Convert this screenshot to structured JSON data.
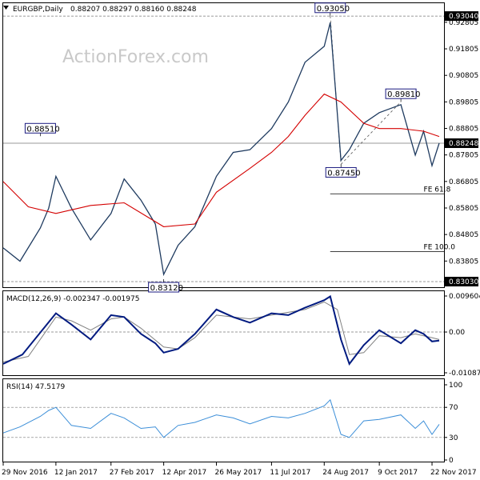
{
  "header": {
    "symbol": "EURGBP,Daily",
    "ohlc": "0.88207 0.88297 0.88160 0.88248",
    "watermark": "ActionForex.com"
  },
  "chart_data": {
    "type": "line",
    "title": "EURGBP,Daily",
    "xlabel": "",
    "ylabel": "",
    "x_labels": [
      "29 Nov 2016",
      "12 Jan 2017",
      "27 Feb 2017",
      "12 Apr 2017",
      "26 May 2017",
      "11 Jul 2017",
      "24 Aug 2017",
      "9 Oct 2017",
      "22 Nov 2017"
    ],
    "ylim": [
      0.8303,
      0.93043
    ],
    "y_ticks": [
      0.92805,
      0.91805,
      0.90805,
      0.89805,
      0.88805,
      0.87805,
      0.86805,
      0.85805,
      0.84805,
      0.83805,
      0.82805
    ],
    "y_tick_labels": [
      "0.92805",
      "0.91805",
      "0.90805",
      "0.89805",
      "0.88805",
      "0.87805",
      "0.86805",
      "0.85805",
      "0.84805",
      "0.83805",
      "0.82805"
    ],
    "price_marks": [
      {
        "label": "0.93040",
        "value": 0.9304,
        "color": "#000000"
      },
      {
        "label": "0.88248",
        "value": 0.88248,
        "color": "#000000"
      },
      {
        "label": "0.83030",
        "value": 0.8303,
        "color": "#000000"
      }
    ],
    "annotations": [
      {
        "text": "0.93050",
        "x": "2017-08-29",
        "value": 0.9305
      },
      {
        "text": "0.88510",
        "x": "2016-12-30",
        "value": 0.8851
      },
      {
        "text": "0.89810",
        "x": "2017-10-27",
        "value": 0.8981
      },
      {
        "text": "0.87450",
        "x": "2017-09-07",
        "value": 0.8745
      },
      {
        "text": "0.83120",
        "x": "2017-04-12",
        "value": 0.8312
      }
    ],
    "fe_levels": [
      {
        "text": "FE 61.8",
        "value": 0.8634
      },
      {
        "text": "FE 100.0",
        "value": 0.8416
      }
    ],
    "series": [
      {
        "name": "EURGBP close",
        "color": "#1e3a5f",
        "x": [
          "2016-11-29",
          "2016-12-13",
          "2016-12-30",
          "2017-01-06",
          "2017-01-12",
          "2017-01-25",
          "2017-02-10",
          "2017-02-27",
          "2017-03-10",
          "2017-03-24",
          "2017-04-05",
          "2017-04-12",
          "2017-04-24",
          "2017-05-08",
          "2017-05-26",
          "2017-06-09",
          "2017-06-23",
          "2017-07-11",
          "2017-07-25",
          "2017-08-08",
          "2017-08-24",
          "2017-08-29",
          "2017-09-07",
          "2017-09-14",
          "2017-09-26",
          "2017-10-09",
          "2017-10-27",
          "2017-11-08",
          "2017-11-15",
          "2017-11-22",
          "2017-11-28"
        ],
        "values": [
          0.843,
          0.838,
          0.8505,
          0.858,
          0.87,
          0.858,
          0.846,
          0.856,
          0.869,
          0.861,
          0.852,
          0.833,
          0.844,
          0.851,
          0.87,
          0.879,
          0.88,
          0.888,
          0.898,
          0.913,
          0.919,
          0.928,
          0.876,
          0.88,
          0.89,
          0.894,
          0.897,
          0.878,
          0.887,
          0.874,
          0.8825
        ]
      },
      {
        "name": "SMA",
        "color": "#d40000",
        "x": [
          "2016-11-29",
          "2016-12-20",
          "2017-01-12",
          "2017-02-10",
          "2017-03-10",
          "2017-04-12",
          "2017-05-08",
          "2017-05-26",
          "2017-06-23",
          "2017-07-11",
          "2017-07-25",
          "2017-08-08",
          "2017-08-24",
          "2017-09-07",
          "2017-09-26",
          "2017-10-09",
          "2017-10-27",
          "2017-11-15",
          "2017-11-28"
        ],
        "values": [
          0.868,
          0.8585,
          0.856,
          0.859,
          0.86,
          0.851,
          0.852,
          0.864,
          0.873,
          0.879,
          0.885,
          0.893,
          0.901,
          0.898,
          0.89,
          0.888,
          0.888,
          0.887,
          0.885
        ]
      }
    ]
  },
  "macd": {
    "header": "MACD(12,26,9) -0.002347 -0.001975",
    "ylim": [
      -0.01087,
      0.009604
    ],
    "ticks": [
      0.009604,
      0.0,
      -0.01087
    ],
    "tick_labels": [
      "0.009604",
      "0.00",
      "-0.010873"
    ],
    "line": {
      "color": "#001a80",
      "x": [
        "2016-11-29",
        "2016-12-15",
        "2017-01-12",
        "2017-01-25",
        "2017-02-10",
        "2017-02-27",
        "2017-03-10",
        "2017-03-24",
        "2017-04-05",
        "2017-04-12",
        "2017-04-24",
        "2017-05-08",
        "2017-05-26",
        "2017-06-09",
        "2017-06-23",
        "2017-07-11",
        "2017-07-25",
        "2017-08-08",
        "2017-08-24",
        "2017-08-29",
        "2017-09-07",
        "2017-09-14",
        "2017-09-26",
        "2017-10-09",
        "2017-10-27",
        "2017-11-08",
        "2017-11-15",
        "2017-11-22",
        "2017-11-28"
      ],
      "values": [
        -0.0085,
        -0.006,
        0.005,
        0.002,
        -0.002,
        0.0045,
        0.004,
        -0.0005,
        -0.003,
        -0.0055,
        -0.0045,
        -0.0005,
        0.006,
        0.004,
        0.0025,
        0.005,
        0.0045,
        0.0065,
        0.0085,
        0.0095,
        -0.002,
        -0.0085,
        -0.0035,
        0.0005,
        -0.003,
        0.0005,
        -0.0005,
        -0.0025,
        -0.0023
      ]
    },
    "signal": {
      "color": "#808080",
      "x": [
        "2016-11-29",
        "2016-12-20",
        "2017-01-12",
        "2017-01-25",
        "2017-02-10",
        "2017-02-27",
        "2017-03-10",
        "2017-03-24",
        "2017-04-12",
        "2017-04-24",
        "2017-05-08",
        "2017-05-26",
        "2017-06-23",
        "2017-07-11",
        "2017-08-08",
        "2017-08-24",
        "2017-09-04",
        "2017-09-14",
        "2017-09-26",
        "2017-10-09",
        "2017-10-27",
        "2017-11-08",
        "2017-11-22",
        "2017-11-28"
      ],
      "values": [
        -0.008,
        -0.0065,
        0.004,
        0.003,
        0.0005,
        0.0035,
        0.004,
        0.001,
        -0.004,
        -0.0045,
        -0.0015,
        0.0045,
        0.0035,
        0.0045,
        0.006,
        0.008,
        0.006,
        -0.006,
        -0.0055,
        -0.001,
        -0.0015,
        -0.0005,
        -0.0015,
        -0.002
      ]
    }
  },
  "rsi": {
    "header": "RSI(14) 47.5179",
    "ylim": [
      0,
      100
    ],
    "ticks": [
      100,
      70,
      30,
      0
    ],
    "tick_labels": [
      "100",
      "70",
      "30",
      "0"
    ],
    "line": {
      "color": "#3b8ed8",
      "x": [
        "2016-11-29",
        "2016-12-13",
        "2016-12-30",
        "2017-01-06",
        "2017-01-12",
        "2017-01-25",
        "2017-02-10",
        "2017-02-27",
        "2017-03-10",
        "2017-03-24",
        "2017-04-05",
        "2017-04-12",
        "2017-04-24",
        "2017-05-08",
        "2017-05-26",
        "2017-06-09",
        "2017-06-23",
        "2017-07-11",
        "2017-07-25",
        "2017-08-08",
        "2017-08-24",
        "2017-08-29",
        "2017-09-07",
        "2017-09-14",
        "2017-09-26",
        "2017-10-09",
        "2017-10-27",
        "2017-11-08",
        "2017-11-15",
        "2017-11-22",
        "2017-11-28"
      ],
      "values": [
        36,
        44,
        58,
        66,
        70,
        46,
        42,
        62,
        56,
        42,
        44,
        30,
        46,
        50,
        60,
        56,
        48,
        58,
        56,
        62,
        72,
        80,
        34,
        30,
        52,
        54,
        60,
        42,
        52,
        34,
        47.5
      ]
    }
  }
}
